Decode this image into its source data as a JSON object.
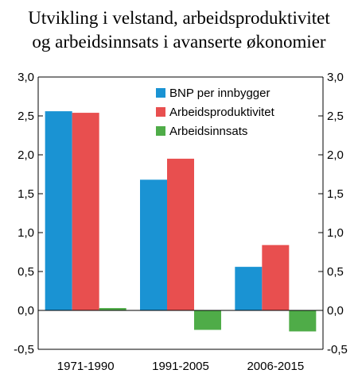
{
  "chart_data": {
    "type": "bar",
    "title_lines": [
      "Utvikling i velstand, arbeidsproduktivitet",
      "og arbeidsinnsats i avanserte økonomier"
    ],
    "categories": [
      "1971-1990",
      "1991-2005",
      "2006-2015"
    ],
    "series": [
      {
        "name": "BNP per innbygger",
        "color": "#1a93d3",
        "values": [
          2.56,
          1.68,
          0.56
        ]
      },
      {
        "name": "Arbeidsproduktivitet",
        "color": "#e84f4f",
        "values": [
          2.54,
          1.95,
          0.84
        ]
      },
      {
        "name": "Arbeidsinnsats",
        "color": "#4fac48",
        "values": [
          0.03,
          -0.25,
          -0.27
        ]
      }
    ],
    "ylim": [
      -0.5,
      3.0
    ],
    "yticks": [
      "-0,5",
      "0,0",
      "0,5",
      "1,0",
      "1,5",
      "2,0",
      "2,5",
      "3,0"
    ],
    "ytick_values": [
      -0.5,
      0.0,
      0.5,
      1.0,
      1.5,
      2.0,
      2.5,
      3.0
    ],
    "legend_position": "top-right",
    "grid": false,
    "secondary_y_axis": true
  }
}
